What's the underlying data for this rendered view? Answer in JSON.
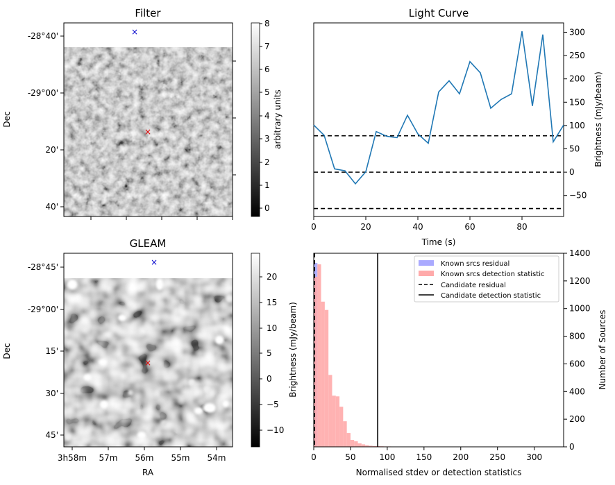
{
  "panels": {
    "filter": {
      "title": "Filter",
      "ylabel": "Dec",
      "yticks": [
        "-28°40'",
        "-29°00'",
        "20'",
        "40'"
      ],
      "colorbar": {
        "label": "arbitrary units",
        "ticks": [
          "8",
          "7",
          "6",
          "5",
          "4",
          "3",
          "2",
          "1",
          "0"
        ]
      },
      "markers": {
        "blue": "×",
        "red": "×"
      }
    },
    "gleam": {
      "title": "GLEAM",
      "ylabel": "Dec",
      "xlabel": "RA",
      "yticks": [
        "-28°45'",
        "-29°00'",
        "15'",
        "30'",
        "45'"
      ],
      "xticks": [
        "3h58m",
        "57m",
        "56m",
        "55m",
        "54m"
      ],
      "colorbar": {
        "label": "Brightness (mJy/beam)",
        "ticks": [
          "20",
          "15",
          "10",
          "5",
          "0",
          "−5",
          "−10"
        ]
      }
    }
  },
  "chart_data": [
    {
      "type": "line",
      "title": "Light Curve",
      "xlabel": "Time (s)",
      "ylabel": "Brightness (mJy/beam)",
      "xlim": [
        0,
        96
      ],
      "ylim": [
        -95,
        320
      ],
      "xticks": [
        "0",
        "20",
        "40",
        "60",
        "80"
      ],
      "yticks": [
        "300",
        "250",
        "200",
        "150",
        "100",
        "50",
        "0",
        "−50"
      ],
      "series": [
        {
          "name": "light curve",
          "color": "#1f77b4",
          "x": [
            0,
            4,
            8,
            12,
            16,
            20,
            24,
            28,
            32,
            36,
            40,
            44,
            48,
            52,
            56,
            60,
            64,
            68,
            72,
            76,
            80,
            84,
            88,
            92,
            96
          ],
          "y": [
            101,
            79,
            7,
            3,
            -25,
            1,
            87,
            77,
            74,
            122,
            82,
            62,
            172,
            196,
            168,
            237,
            213,
            137,
            156,
            168,
            302,
            142,
            295,
            65,
            101
          ]
        }
      ],
      "hlines": [
        78,
        0,
        -78
      ],
      "hline_style": "dashed"
    },
    {
      "type": "histogram",
      "xlabel": "Normalised stdev or detection statistics",
      "ylabel_left": "Brightness (mJy/beam)",
      "ylabel_right": "Number of Sources",
      "xlim": [
        0,
        340
      ],
      "ylim": [
        0,
        1400
      ],
      "xticks": [
        "0",
        "50",
        "100",
        "150",
        "200",
        "250",
        "300"
      ],
      "yticks": [
        "1400",
        "1200",
        "1000",
        "800",
        "600",
        "400",
        "200",
        "0"
      ],
      "bin_width": 5,
      "series": [
        {
          "name": "Known srcs residual",
          "color": "#aaaaff",
          "bins_start": 0,
          "values": [
            1330
          ]
        },
        {
          "name": "Known srcs detection statistic",
          "color": "#ffaaaa",
          "bins_start": 0,
          "values": [
            1230,
            1320,
            1050,
            990,
            520,
            370,
            365,
            290,
            185,
            100,
            50,
            40,
            25,
            18,
            12,
            8,
            6,
            5,
            4,
            3,
            3,
            2,
            2,
            2,
            2,
            2,
            1,
            1,
            1,
            1,
            1,
            1
          ]
        }
      ],
      "vlines": [
        {
          "name": "Candidate residual",
          "x": 1,
          "style": "dashed"
        },
        {
          "name": "Candidate detection statistic",
          "x": 87,
          "style": "solid"
        }
      ],
      "legend": [
        "Known srcs residual",
        "Known srcs detection statistic",
        "Candidate residual",
        "Candidate detection statistic"
      ],
      "legend_position": "top-right"
    }
  ]
}
